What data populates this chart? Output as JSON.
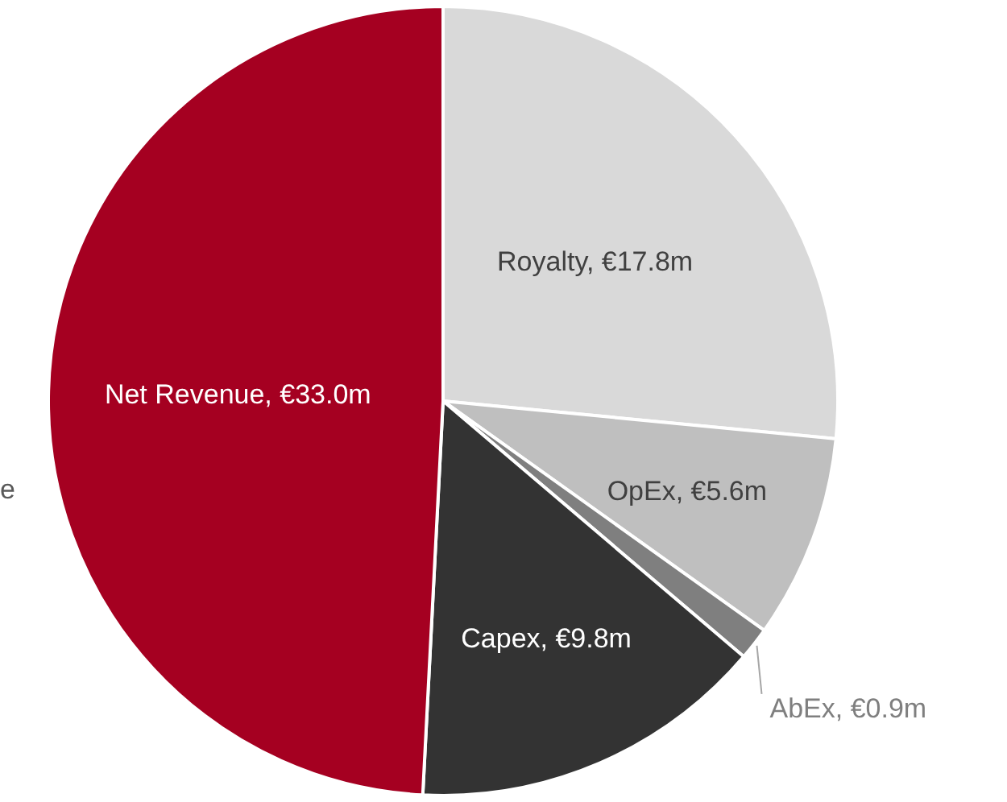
{
  "chart_data": {
    "type": "pie",
    "categories": [
      "Royalty",
      "OpEx",
      "AbEx",
      "Capex",
      "Net Revenue"
    ],
    "values": [
      17.8,
      5.6,
      0.9,
      9.8,
      33.0
    ],
    "value_labels": [
      "€17.8m",
      "€5.6m",
      "€0.9m",
      "€9.8m",
      "€33.0m"
    ],
    "colors": [
      "#d9d9d9",
      "#bfbfbf",
      "#7f7f7f",
      "#333333",
      "#a50021"
    ],
    "legend": false,
    "annotations": [
      "e"
    ]
  }
}
